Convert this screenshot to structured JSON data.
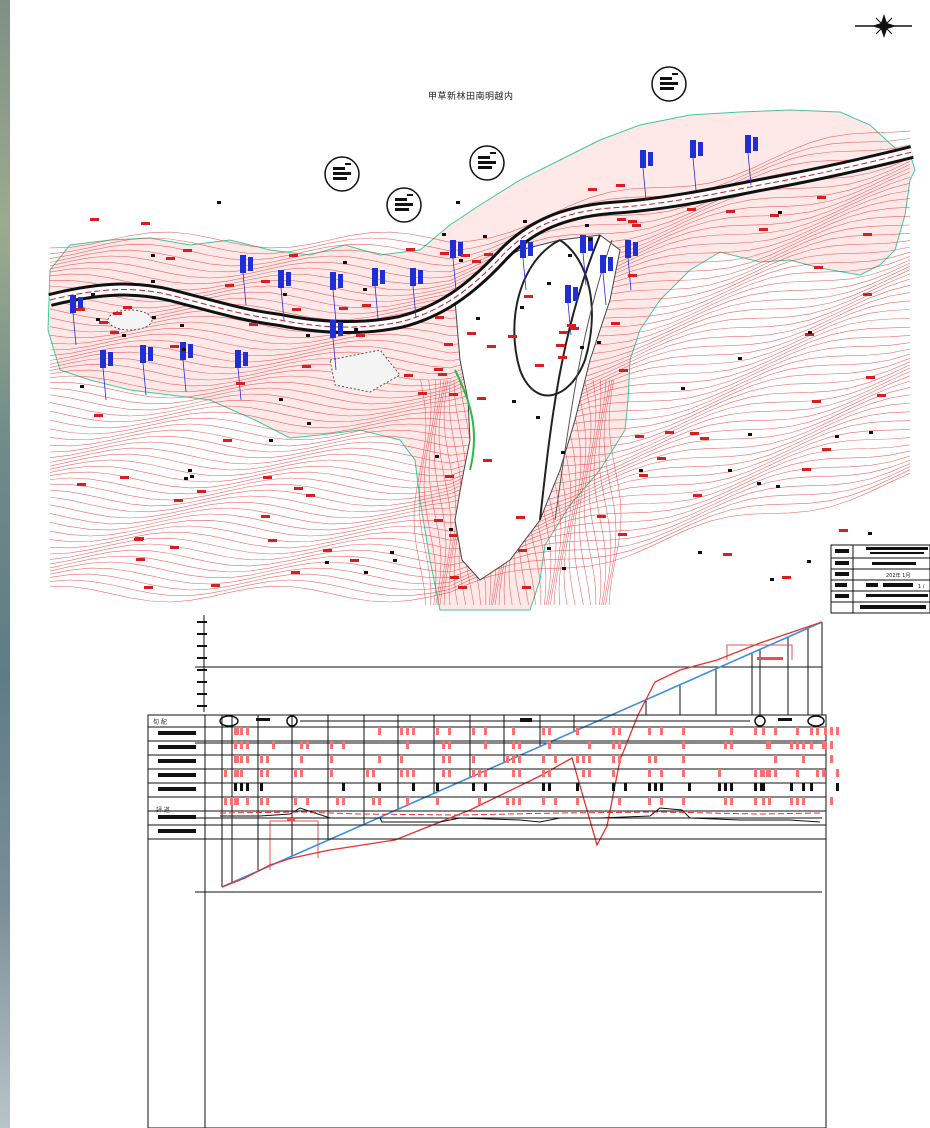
{
  "plan": {
    "title": "甲草新林田南明越内",
    "north_arrow": "compass-north-icon"
  },
  "title_block": {
    "date_text": "202年 1月",
    "scale_text": "1 /"
  },
  "profile": {
    "legend_header": "旬   配",
    "row_label_7": "評    道",
    "lines": [
      "design-grade-line",
      "ground-profile-line"
    ],
    "colors": {
      "design_grade": "#3d8fe0",
      "ground": "#e83030",
      "contour": "#e23a3a",
      "channel": "#2222d8",
      "road": "#111111"
    }
  },
  "colors": {
    "background": "#ffffff",
    "contour_red": "#e23a3a",
    "drain_blue": "#1f2fd6",
    "grade_blue": "#3d8fe0",
    "hatch_pink": "#ff7070"
  }
}
